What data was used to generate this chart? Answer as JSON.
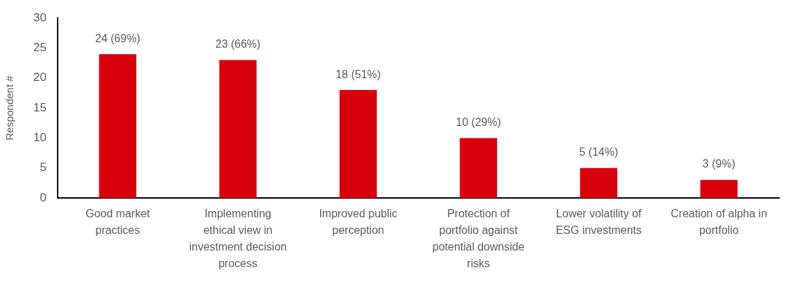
{
  "chart_data": {
    "type": "bar",
    "ylabel": "Respondent #",
    "categories": [
      "Good market practices",
      "Implementing ethical view in investment decision process",
      "Improved public perception",
      "Protection of portfolio against potential downside risks",
      "Lower volatility of ESG investments",
      "Creation of alpha in portfolio"
    ],
    "values": [
      24,
      23,
      18,
      10,
      5,
      3
    ],
    "color": "#d9000d",
    "value_labels": [
      "24 (69%)",
      "23 (66%)",
      "18 (51%)",
      "10 (29%)",
      "5 (14%)",
      "3 (9%)"
    ],
    "ylim": [
      0,
      30
    ],
    "yticks": [
      0,
      5,
      10,
      15,
      20,
      25,
      30
    ]
  }
}
